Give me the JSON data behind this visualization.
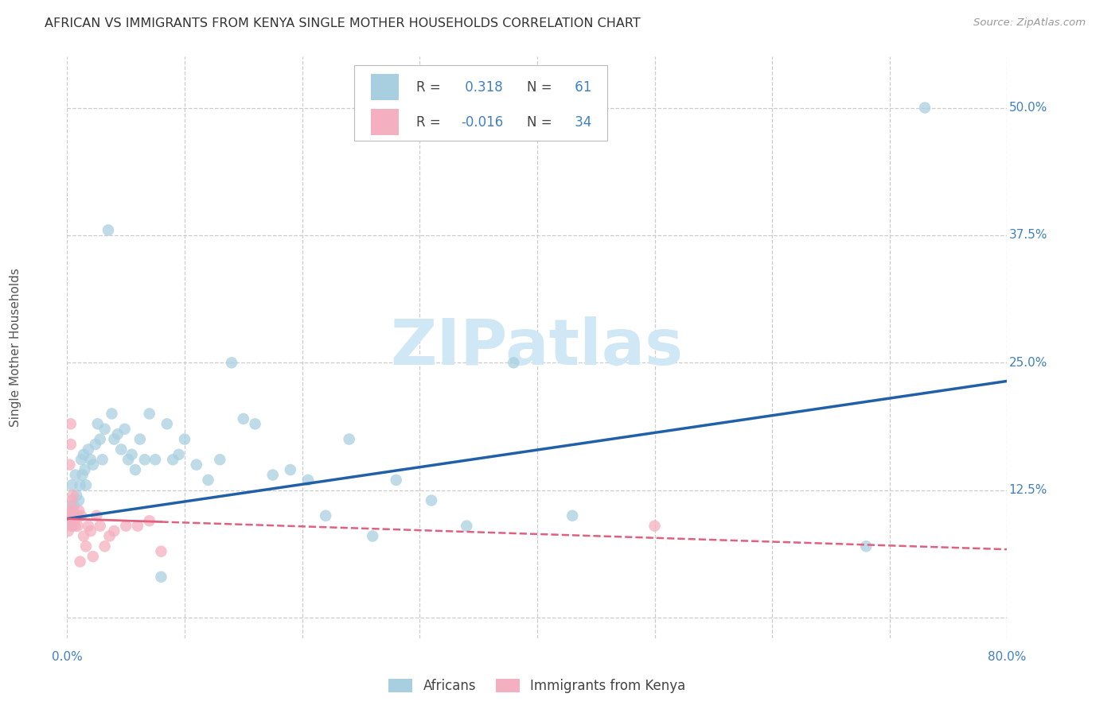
{
  "title": "AFRICAN VS IMMIGRANTS FROM KENYA SINGLE MOTHER HOUSEHOLDS CORRELATION CHART",
  "source": "Source: ZipAtlas.com",
  "ylabel": "Single Mother Households",
  "xlim": [
    0.0,
    0.8
  ],
  "ylim": [
    -0.02,
    0.55
  ],
  "yticks": [
    0.0,
    0.125,
    0.25,
    0.375,
    0.5
  ],
  "ytick_labels": [
    "",
    "12.5%",
    "25.0%",
    "37.5%",
    "50.0%"
  ],
  "xticks": [
    0.0,
    0.1,
    0.2,
    0.3,
    0.4,
    0.5,
    0.6,
    0.7,
    0.8
  ],
  "xtick_labels": [
    "0.0%",
    "",
    "",
    "",
    "",
    "",
    "",
    "",
    "80.0%"
  ],
  "blue_R": 0.318,
  "blue_N": 61,
  "pink_R": -0.016,
  "pink_N": 34,
  "blue_color": "#a8cfe0",
  "pink_color": "#f4afc0",
  "blue_line_color": "#2060a8",
  "pink_line_color": "#e06080",
  "background_color": "#ffffff",
  "grid_color": "#cccccc",
  "title_color": "#333333",
  "watermark_color": "#d0e8f5",
  "tick_label_color": "#4080c0",
  "africans_x": [
    0.002,
    0.003,
    0.004,
    0.004,
    0.005,
    0.006,
    0.007,
    0.008,
    0.009,
    0.01,
    0.011,
    0.012,
    0.013,
    0.014,
    0.015,
    0.016,
    0.018,
    0.02,
    0.022,
    0.024,
    0.026,
    0.028,
    0.03,
    0.032,
    0.035,
    0.038,
    0.04,
    0.043,
    0.046,
    0.049,
    0.052,
    0.055,
    0.058,
    0.062,
    0.066,
    0.07,
    0.075,
    0.08,
    0.085,
    0.09,
    0.095,
    0.1,
    0.11,
    0.12,
    0.13,
    0.14,
    0.15,
    0.16,
    0.175,
    0.19,
    0.205,
    0.22,
    0.24,
    0.26,
    0.28,
    0.31,
    0.34,
    0.38,
    0.43,
    0.68,
    0.73
  ],
  "africans_y": [
    0.1,
    0.11,
    0.13,
    0.09,
    0.1,
    0.11,
    0.14,
    0.12,
    0.1,
    0.115,
    0.13,
    0.155,
    0.14,
    0.16,
    0.145,
    0.13,
    0.165,
    0.155,
    0.15,
    0.17,
    0.19,
    0.175,
    0.155,
    0.185,
    0.38,
    0.2,
    0.175,
    0.18,
    0.165,
    0.185,
    0.155,
    0.16,
    0.145,
    0.175,
    0.155,
    0.2,
    0.155,
    0.04,
    0.19,
    0.155,
    0.16,
    0.175,
    0.15,
    0.135,
    0.155,
    0.25,
    0.195,
    0.19,
    0.14,
    0.145,
    0.135,
    0.1,
    0.175,
    0.08,
    0.135,
    0.115,
    0.09,
    0.25,
    0.1,
    0.07,
    0.5
  ],
  "kenya_x": [
    0.001,
    0.001,
    0.002,
    0.002,
    0.002,
    0.003,
    0.003,
    0.004,
    0.004,
    0.005,
    0.005,
    0.006,
    0.006,
    0.007,
    0.008,
    0.009,
    0.01,
    0.011,
    0.012,
    0.014,
    0.016,
    0.018,
    0.02,
    0.022,
    0.025,
    0.028,
    0.032,
    0.036,
    0.04,
    0.05,
    0.06,
    0.07,
    0.08,
    0.5
  ],
  "kenya_y": [
    0.1,
    0.085,
    0.15,
    0.105,
    0.095,
    0.17,
    0.19,
    0.115,
    0.09,
    0.105,
    0.12,
    0.1,
    0.095,
    0.09,
    0.1,
    0.09,
    0.105,
    0.055,
    0.1,
    0.08,
    0.07,
    0.09,
    0.085,
    0.06,
    0.1,
    0.09,
    0.07,
    0.08,
    0.085,
    0.09,
    0.09,
    0.095,
    0.065,
    0.09
  ],
  "blue_line_x": [
    0.0,
    0.8
  ],
  "blue_line_y": [
    0.097,
    0.232
  ],
  "pink_line_x": [
    0.0,
    0.08
  ],
  "pink_line_y": [
    0.097,
    0.094
  ]
}
